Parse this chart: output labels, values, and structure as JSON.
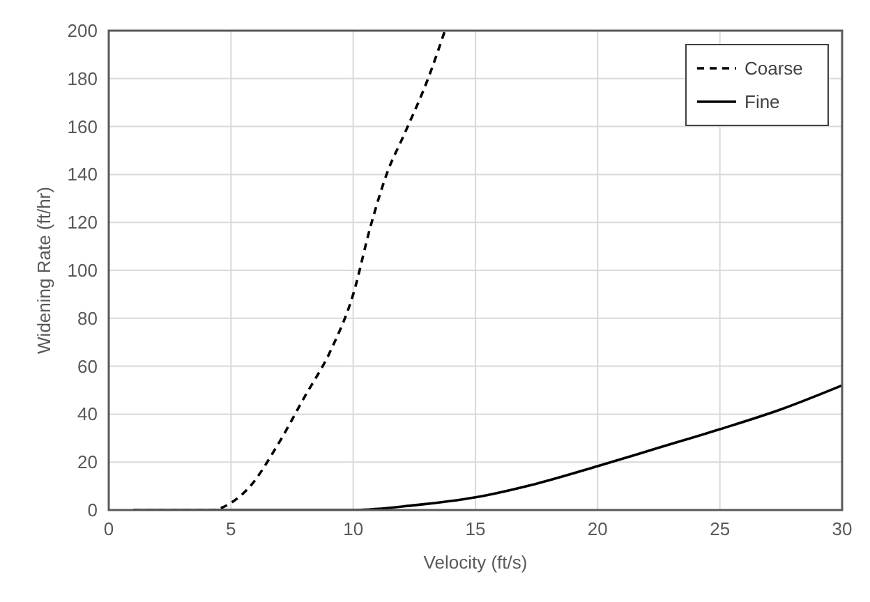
{
  "chart_data": {
    "type": "line",
    "xlabel": "Velocity (ft/s)",
    "ylabel": "Widening Rate (ft/hr)",
    "xlim": [
      0,
      30
    ],
    "ylim": [
      0,
      200
    ],
    "xticks": [
      0,
      5,
      10,
      15,
      20,
      25,
      30
    ],
    "yticks": [
      0,
      20,
      40,
      60,
      80,
      100,
      120,
      140,
      160,
      180,
      200
    ],
    "grid": true,
    "legend": "top right",
    "marker": "none",
    "series": [
      {
        "name": "Coarse",
        "color": "#000000",
        "line_style": "dashed",
        "x": [
          1,
          4.2,
          5,
          5.75,
          6.9,
          8,
          9.1,
          10,
          10.7,
          11.4,
          12.1,
          13.1,
          13.75
        ],
        "values": [
          0,
          0,
          3,
          9.5,
          27,
          47,
          67,
          90,
          118,
          141,
          157,
          181,
          200
        ]
      },
      {
        "name": "Fine",
        "color": "#000000",
        "line_style": "solid",
        "x": [
          1,
          10,
          12.5,
          15,
          17.5,
          20,
          22.5,
          25,
          27.5,
          30
        ],
        "values": [
          0,
          0,
          2,
          5.3,
          11,
          18.3,
          26,
          33.7,
          42,
          52
        ]
      }
    ]
  }
}
